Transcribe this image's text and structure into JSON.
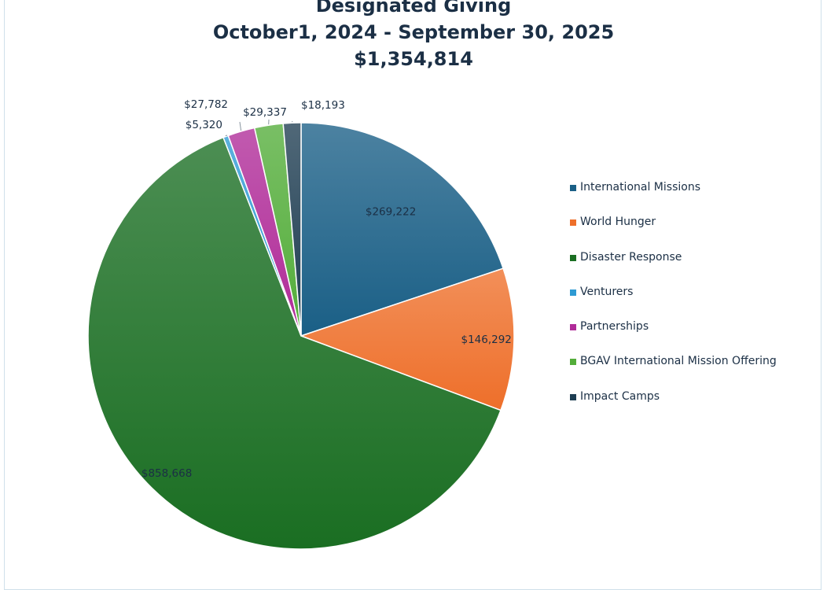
{
  "chart_data": {
    "type": "pie",
    "title": "Designated Giving",
    "subtitle": "October1, 2024 - September 30, 2025",
    "total": "$1,354,814",
    "legend_position": "right",
    "series": [
      {
        "name": "International Missions",
        "value": 269222,
        "label": "$269,222",
        "color": "#1a5f86"
      },
      {
        "name": "World Hunger",
        "value": 146292,
        "label": "$146,292",
        "color": "#ee6f2a"
      },
      {
        "name": "Disaster Response",
        "value": 858668,
        "label": "$858,668",
        "color": "#1a6e22"
      },
      {
        "name": "Venturers",
        "value": 5320,
        "label": "$5,320",
        "color": "#2e9ad3"
      },
      {
        "name": "Partnerships",
        "value": 27782,
        "label": "$27,782",
        "color": "#b02b98"
      },
      {
        "name": "BGAV International Mission Offering",
        "value": 29337,
        "label": "$29,337",
        "color": "#53ad3a"
      },
      {
        "name": "Impact Camps",
        "value": 18193,
        "label": "$18,193",
        "color": "#1e3d52"
      }
    ]
  }
}
